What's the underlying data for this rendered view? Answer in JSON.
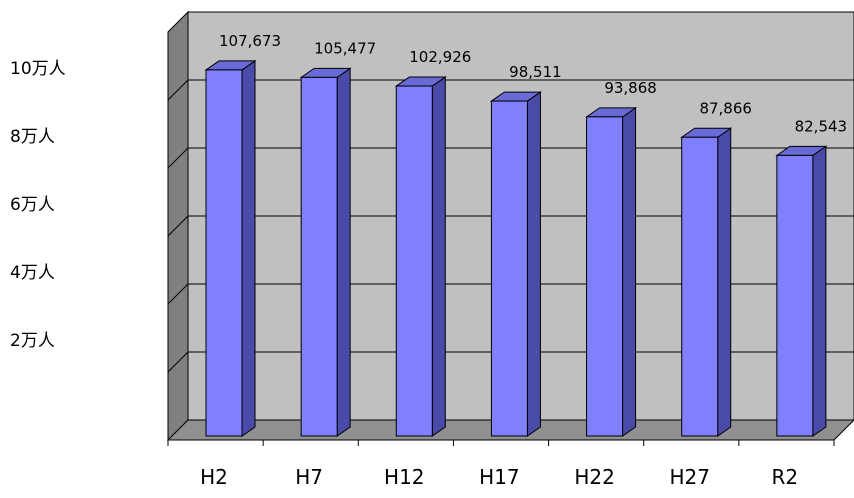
{
  "chart_data": {
    "type": "bar",
    "categories": [
      "H2",
      "H7",
      "H12",
      "H17",
      "H22",
      "H27",
      "R2"
    ],
    "values": [
      107673,
      105477,
      102926,
      98511,
      93868,
      87866,
      82543
    ],
    "value_labels": [
      "107,673",
      "105,477",
      "102,926",
      "98,511",
      "93,868",
      "87,866",
      "82,543"
    ],
    "y_tick_labels": [
      "2万人",
      "4万人",
      "6万人",
      "8万人",
      "10万人"
    ],
    "y_tick_values": [
      20000,
      40000,
      60000,
      80000,
      100000
    ],
    "ylim": [
      0,
      120000
    ],
    "grid": true,
    "legend": "none",
    "title": "",
    "xlabel": "",
    "ylabel": "",
    "colors": {
      "bar_front": "#8080ff",
      "bar_top": "#6a6ad6",
      "bar_side": "#4a4aa8",
      "bar_edge": "#000000",
      "wall": "#c0c0c0",
      "wall_side": "#808080",
      "floor": "#909090",
      "grid": "#000000"
    }
  }
}
